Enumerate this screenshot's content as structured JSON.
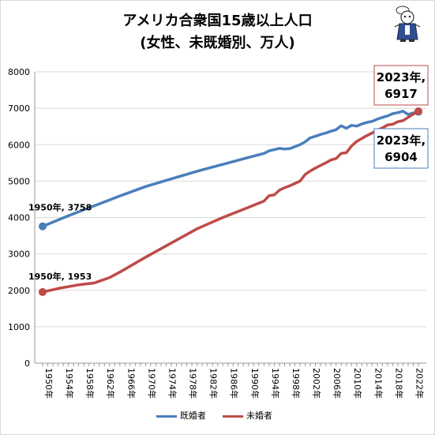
{
  "chart_data": {
    "type": "line",
    "title": "アメリカ合衆国15歳以上人口",
    "subtitle": "(女性、未既婚別、万人)",
    "y_ticks": [
      0,
      1000,
      2000,
      3000,
      4000,
      5000,
      6000,
      7000,
      8000
    ],
    "x_tick_labels": [
      "1950年",
      "1954年",
      "1958年",
      "1962年",
      "1966年",
      "1970年",
      "1974年",
      "1978年",
      "1982年",
      "1986年",
      "1990年",
      "1994年",
      "1998年",
      "2002年",
      "2006年",
      "2010年",
      "2014年",
      "2018年",
      "2022年"
    ],
    "ylim": [
      0,
      8000
    ],
    "xlim": [
      1950,
      2023
    ],
    "grid": true,
    "legend_position": "bottom",
    "series": [
      {
        "name": "既婚者",
        "color": "#4a7ebb",
        "x": [
          1950,
          1955,
          1960,
          1965,
          1970,
          1975,
          1980,
          1985,
          1990,
          1993,
          1994,
          1996,
          1997,
          1998,
          2000,
          2001,
          2002,
          2003,
          2004,
          2005,
          2006,
          2007,
          2008,
          2009,
          2010,
          2011,
          2012,
          2013,
          2014,
          2015,
          2016,
          2017,
          2018,
          2019,
          2020,
          2021,
          2022,
          2023
        ],
        "values": [
          3758,
          4050,
          4320,
          4590,
          4850,
          5060,
          5270,
          5460,
          5650,
          5760,
          5830,
          5900,
          5880,
          5890,
          6000,
          6080,
          6190,
          6230,
          6280,
          6320,
          6370,
          6410,
          6520,
          6450,
          6530,
          6510,
          6570,
          6610,
          6640,
          6700,
          6750,
          6790,
          6850,
          6880,
          6920,
          6830,
          6870,
          6904
        ]
      },
      {
        "name": "未婚者",
        "color": "#be4b48",
        "x": [
          1950,
          1953,
          1957,
          1960,
          1963,
          1965,
          1970,
          1975,
          1980,
          1985,
          1990,
          1993,
          1994,
          1995,
          1996,
          1997,
          1998,
          2000,
          2001,
          2002,
          2003,
          2004,
          2005,
          2006,
          2007,
          2008,
          2009,
          2010,
          2011,
          2012,
          2013,
          2014,
          2015,
          2016,
          2017,
          2018,
          2019,
          2020,
          2021,
          2022,
          2023
        ],
        "values": [
          1953,
          2050,
          2150,
          2200,
          2350,
          2500,
          2910,
          3300,
          3690,
          4000,
          4280,
          4450,
          4600,
          4620,
          4750,
          4820,
          4870,
          5000,
          5180,
          5280,
          5360,
          5430,
          5500,
          5580,
          5620,
          5760,
          5780,
          5960,
          6090,
          6170,
          6250,
          6320,
          6400,
          6460,
          6540,
          6560,
          6630,
          6660,
          6750,
          6840,
          6917
        ]
      }
    ],
    "annotations": [
      {
        "label": "1950年, 3758",
        "series": "既婚者"
      },
      {
        "label": "1950年, 1953",
        "series": "未婚者"
      },
      {
        "label": "2023年,\n6917",
        "series": "未婚者"
      },
      {
        "label": "2023年,\n6904",
        "series": "既婚者"
      }
    ]
  },
  "colors": {
    "married": "#4a7ebb",
    "unmarried": "#be4b48",
    "grid": "#d9d9d9"
  },
  "mascot_icon": "cartoon-character-icon"
}
